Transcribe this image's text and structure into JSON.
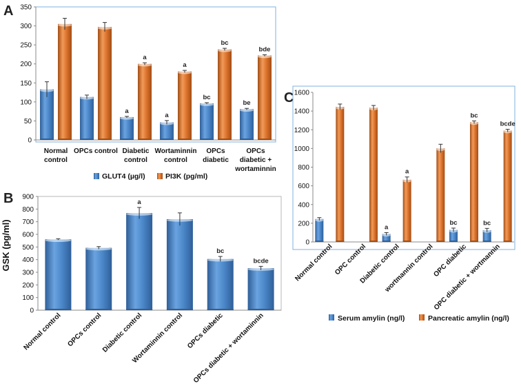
{
  "colors": {
    "blue": "#4a86c8",
    "blue_dark": "#2f5f98",
    "orange": "#d9702a",
    "orange_dark": "#a24e16",
    "frame": "#7fb2dc",
    "axis": "#888888"
  },
  "chart_data": [
    {
      "panel": "A",
      "type": "bar",
      "categories": [
        [
          "Normal",
          "control"
        ],
        [
          "OPCs control"
        ],
        [
          "Diabetic",
          "control"
        ],
        [
          "Wortaminnin",
          "control"
        ],
        [
          "OPCs",
          "diabetic"
        ],
        [
          "OPCs",
          "diabetic +",
          "wortaminnin"
        ]
      ],
      "ylim": [
        0,
        350
      ],
      "yticks": [
        0,
        50,
        100,
        150,
        200,
        250,
        300,
        350
      ],
      "series": [
        {
          "name": "GLUT4 (µg/l)",
          "color": "blue",
          "values": [
            133,
            113,
            60,
            46,
            96,
            81
          ],
          "errors": [
            20,
            5,
            2,
            5,
            2,
            2
          ],
          "labels": [
            "",
            "",
            "a",
            "a",
            "bc",
            "be"
          ]
        },
        {
          "name": "PI3K (pg/ml)",
          "color": "orange",
          "values": [
            305,
            297,
            200,
            180,
            238,
            222
          ],
          "errors": [
            15,
            12,
            3,
            3,
            3,
            2
          ],
          "labels": [
            "",
            "",
            "a",
            "a",
            "bc",
            "bde"
          ]
        }
      ]
    },
    {
      "panel": "B",
      "type": "bar",
      "ylabel": "GSK (pg/ml)",
      "categories": [
        "Normal control",
        "OPCs control",
        "Diabetic control",
        "Wortaminnin control",
        "OPCs diabetic",
        "OPCs diabetic + wortaminnin"
      ],
      "ylim": [
        0,
        900
      ],
      "yticks": [
        0,
        100,
        200,
        300,
        400,
        500,
        600,
        700,
        800,
        900
      ],
      "series": [
        {
          "name": "GSK",
          "color": "blue",
          "values": [
            560,
            493,
            768,
            720,
            405,
            332
          ],
          "errors": [
            5,
            10,
            45,
            50,
            20,
            15
          ],
          "labels": [
            "",
            "",
            "a",
            "",
            "bc",
            "bcde"
          ]
        }
      ]
    },
    {
      "panel": "C",
      "type": "bar",
      "categories": [
        "Normal control",
        "OPC control",
        "Diabetic control",
        "wortmannin control",
        "OPC diabetic",
        "OPC diabetic +  wortmannin"
      ],
      "ylim": [
        0,
        1600
      ],
      "yticks": [
        0,
        200,
        400,
        600,
        800,
        1000,
        1200,
        1400,
        1600
      ],
      "series": [
        {
          "name": "Serum amylin (ng/l)",
          "color": "blue",
          "values": [
            245,
            0,
            85,
            0,
            128,
            125
          ],
          "errors": [
            15,
            0,
            15,
            0,
            20,
            20
          ],
          "labels": [
            "",
            "",
            "a",
            "",
            "bc",
            "bc"
          ]
        },
        {
          "name": "Pancreatic amylin (ng/l)",
          "color": "orange",
          "values": [
            1445,
            1435,
            665,
            1000,
            1280,
            1190
          ],
          "errors": [
            30,
            25,
            30,
            45,
            15,
            15
          ],
          "labels": [
            "",
            "",
            "a",
            "",
            "bc",
            "bcde"
          ]
        }
      ]
    }
  ]
}
